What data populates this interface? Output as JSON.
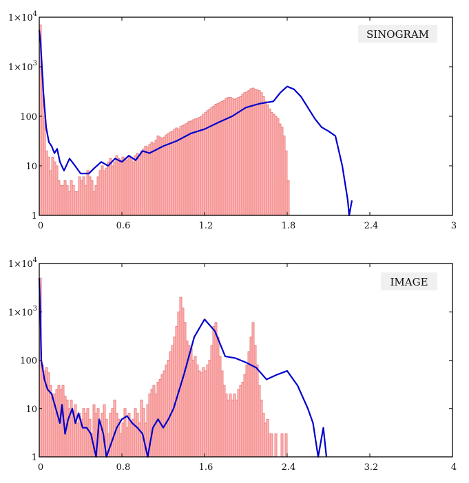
{
  "chart_data": [
    {
      "type": "bar",
      "title": "SINOGRAM",
      "label_box": "SINOGRAM",
      "xlabel": "",
      "ylabel": "",
      "xlim": [
        0,
        3
      ],
      "ylim": [
        1,
        10000
      ],
      "yscale": "log",
      "x_ticks": [
        "0",
        "0.6",
        "1.2",
        "1.8",
        "2.4",
        "3"
      ],
      "y_ticks": [
        "1",
        "10",
        "100",
        "1×10³",
        "1×10⁴"
      ],
      "bar_color": "#ffb6b6",
      "bar_edge": "#e88080",
      "line_color": "#0000cc",
      "grid": false,
      "series": [
        {
          "name": "histogram",
          "kind": "bar",
          "bin_width": 0.015,
          "x_start": 0.0,
          "values": [
            7000,
            600,
            100,
            20,
            15,
            8,
            15,
            12,
            10,
            5,
            4,
            4,
            5,
            4,
            3,
            5,
            4,
            3,
            3,
            6,
            5,
            6,
            4,
            8,
            6,
            5,
            3,
            4,
            6,
            8,
            10,
            8,
            9,
            12,
            14,
            10,
            12,
            16,
            14,
            13,
            15,
            14,
            13,
            16,
            15,
            12,
            16,
            18,
            16,
            20,
            22,
            25,
            24,
            27,
            30,
            28,
            33,
            40,
            38,
            35,
            38,
            42,
            45,
            48,
            50,
            55,
            58,
            55,
            62,
            65,
            68,
            72,
            78,
            80,
            85,
            88,
            90,
            95,
            100,
            110,
            120,
            130,
            140,
            150,
            160,
            175,
            180,
            190,
            200,
            210,
            230,
            240,
            240,
            230,
            220,
            230,
            240,
            250,
            280,
            300,
            310,
            330,
            360,
            370,
            350,
            340,
            330,
            300,
            250,
            200,
            170,
            140,
            120,
            110,
            100,
            90,
            70,
            60,
            40,
            20,
            5,
            1,
            1,
            1,
            1,
            1
          ]
        },
        {
          "name": "fit",
          "kind": "line",
          "points": [
            [
              0,
              5500
            ],
            [
              0.01,
              3000
            ],
            [
              0.03,
              300
            ],
            [
              0.05,
              60
            ],
            [
              0.07,
              30
            ],
            [
              0.09,
              25
            ],
            [
              0.11,
              18
            ],
            [
              0.13,
              22
            ],
            [
              0.15,
              12
            ],
            [
              0.18,
              8
            ],
            [
              0.22,
              14
            ],
            [
              0.26,
              10
            ],
            [
              0.3,
              7
            ],
            [
              0.36,
              7
            ],
            [
              0.4,
              9
            ],
            [
              0.45,
              12
            ],
            [
              0.5,
              10
            ],
            [
              0.55,
              14
            ],
            [
              0.6,
              12
            ],
            [
              0.65,
              16
            ],
            [
              0.7,
              13
            ],
            [
              0.75,
              20
            ],
            [
              0.8,
              18
            ],
            [
              0.9,
              25
            ],
            [
              1.0,
              32
            ],
            [
              1.1,
              45
            ],
            [
              1.2,
              55
            ],
            [
              1.3,
              75
            ],
            [
              1.4,
              100
            ],
            [
              1.5,
              150
            ],
            [
              1.6,
              180
            ],
            [
              1.7,
              200
            ],
            [
              1.75,
              300
            ],
            [
              1.8,
              400
            ],
            [
              1.85,
              350
            ],
            [
              1.9,
              250
            ],
            [
              1.95,
              150
            ],
            [
              2.0,
              90
            ],
            [
              2.05,
              60
            ],
            [
              2.1,
              50
            ],
            [
              2.15,
              40
            ],
            [
              2.2,
              10
            ],
            [
              2.24,
              2
            ],
            [
              2.25,
              1
            ],
            [
              2.27,
              2
            ]
          ]
        }
      ]
    },
    {
      "type": "bar",
      "title": "IMAGE",
      "label_box": "IMAGE",
      "xlabel": "",
      "ylabel": "",
      "xlim": [
        0,
        4
      ],
      "ylim": [
        1,
        10000
      ],
      "yscale": "log",
      "x_ticks": [
        "0",
        "0.8",
        "1.6",
        "2.4",
        "3.2",
        "4"
      ],
      "y_ticks": [
        "1",
        "10",
        "100",
        "1×10³",
        "1×10⁴"
      ],
      "bar_color": "#ffb6b6",
      "bar_edge": "#e88080",
      "line_color": "#0000cc",
      "grid": false,
      "series": [
        {
          "name": "histogram",
          "kind": "bar",
          "bin_width": 0.02,
          "x_start": 0.0,
          "values": [
            5000,
            80,
            60,
            70,
            55,
            30,
            20,
            20,
            25,
            30,
            25,
            30,
            18,
            15,
            10,
            15,
            8,
            12,
            5,
            8,
            6,
            10,
            8,
            10,
            6,
            3,
            12,
            8,
            10,
            5,
            8,
            12,
            6,
            3,
            8,
            10,
            15,
            8,
            6,
            3,
            5,
            10,
            4,
            8,
            5,
            6,
            10,
            8,
            5,
            15,
            10,
            5,
            12,
            20,
            25,
            30,
            20,
            35,
            40,
            50,
            60,
            80,
            100,
            150,
            200,
            300,
            500,
            1000,
            2000,
            1200,
            600,
            250,
            200,
            180,
            100,
            120,
            80,
            60,
            55,
            70,
            60,
            80,
            100,
            200,
            500,
            600,
            300,
            120,
            60,
            30,
            20,
            15,
            20,
            15,
            20,
            15,
            25,
            30,
            35,
            50,
            80,
            150,
            300,
            600,
            200,
            80,
            30,
            15,
            8,
            5,
            6,
            3,
            3,
            1,
            3,
            1,
            1,
            3,
            1,
            3,
            1,
            1,
            1
          ]
        },
        {
          "name": "fit",
          "kind": "line",
          "points": [
            [
              0,
              5000
            ],
            [
              0.01,
              1000
            ],
            [
              0.02,
              100
            ],
            [
              0.05,
              40
            ],
            [
              0.08,
              25
            ],
            [
              0.12,
              20
            ],
            [
              0.16,
              10
            ],
            [
              0.2,
              5
            ],
            [
              0.22,
              12
            ],
            [
              0.25,
              3
            ],
            [
              0.28,
              6
            ],
            [
              0.32,
              10
            ],
            [
              0.35,
              5
            ],
            [
              0.38,
              8
            ],
            [
              0.42,
              4
            ],
            [
              0.46,
              4
            ],
            [
              0.5,
              3
            ],
            [
              0.55,
              1
            ],
            [
              0.58,
              6
            ],
            [
              0.62,
              3
            ],
            [
              0.65,
              1
            ],
            [
              0.7,
              2
            ],
            [
              0.75,
              4
            ],
            [
              0.8,
              6
            ],
            [
              0.85,
              7
            ],
            [
              0.9,
              5
            ],
            [
              0.95,
              4
            ],
            [
              1.0,
              3
            ],
            [
              1.05,
              1
            ],
            [
              1.1,
              4
            ],
            [
              1.15,
              6
            ],
            [
              1.2,
              4
            ],
            [
              1.25,
              6
            ],
            [
              1.3,
              10
            ],
            [
              1.4,
              50
            ],
            [
              1.5,
              300
            ],
            [
              1.6,
              700
            ],
            [
              1.7,
              400
            ],
            [
              1.8,
              120
            ],
            [
              1.9,
              110
            ],
            [
              2.0,
              90
            ],
            [
              2.1,
              70
            ],
            [
              2.2,
              40
            ],
            [
              2.3,
              50
            ],
            [
              2.4,
              60
            ],
            [
              2.5,
              30
            ],
            [
              2.6,
              10
            ],
            [
              2.65,
              5
            ],
            [
              2.7,
              1
            ],
            [
              2.75,
              4
            ],
            [
              2.78,
              1
            ]
          ]
        }
      ]
    }
  ]
}
